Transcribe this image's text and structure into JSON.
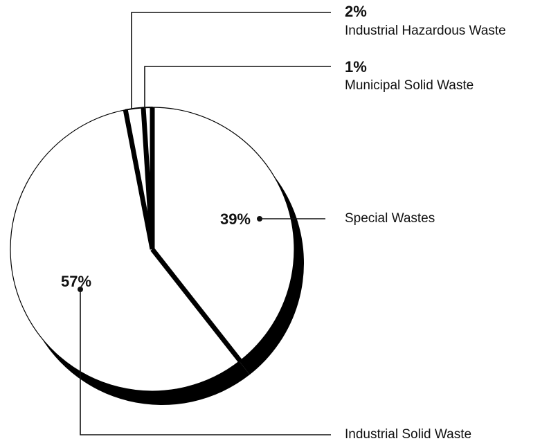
{
  "chart_data": {
    "type": "pie",
    "categories": [
      "Special Wastes",
      "Industrial Solid Waste",
      "Industrial Hazardous Waste",
      "Municipal Solid Waste"
    ],
    "values": [
      39,
      57,
      2,
      1
    ],
    "value_labels": [
      "39%",
      "57%",
      "2%",
      "1%"
    ],
    "colors": [
      "#ffffff",
      "#ffffff",
      "#ffffff",
      "#ffffff"
    ]
  }
}
